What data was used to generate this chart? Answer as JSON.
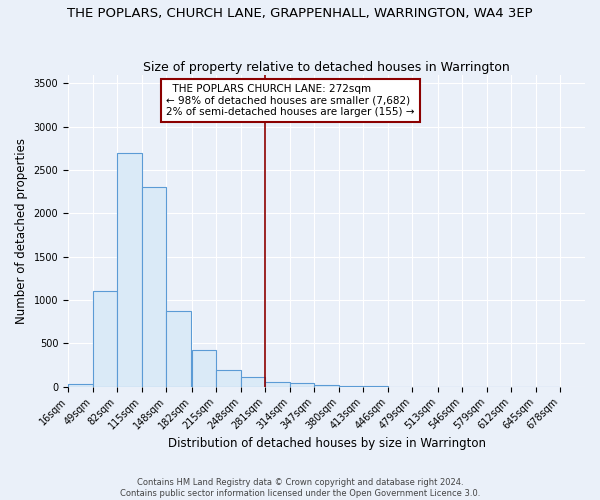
{
  "title": "THE POPLARS, CHURCH LANE, GRAPPENHALL, WARRINGTON, WA4 3EP",
  "subtitle": "Size of property relative to detached houses in Warrington",
  "xlabel": "Distribution of detached houses by size in Warrington",
  "ylabel": "Number of detached properties",
  "footer_line1": "Contains HM Land Registry data © Crown copyright and database right 2024.",
  "footer_line2": "Contains public sector information licensed under the Open Government Licence 3.0.",
  "bin_edges": [
    16,
    49,
    82,
    115,
    148,
    182,
    215,
    248,
    281,
    314,
    347,
    380,
    413,
    446,
    479,
    513,
    546,
    579,
    612,
    645,
    678
  ],
  "bar_heights": [
    30,
    1100,
    2700,
    2300,
    880,
    420,
    190,
    110,
    60,
    40,
    20,
    5,
    5,
    2,
    0,
    0,
    0,
    0,
    0,
    0
  ],
  "property_line_x": 281,
  "annotation_text": "  THE POPLARS CHURCH LANE: 272sqm\n← 98% of detached houses are smaller (7,682)\n2% of semi-detached houses are larger (155) →",
  "bar_color": "#daeaf7",
  "bar_edge_color": "#5b9bd5",
  "vline_color": "#8b0000",
  "annotation_box_color": "#ffffff",
  "annotation_box_edge": "#8b0000",
  "background_color": "#eaf0f9",
  "ylim": [
    0,
    3600
  ],
  "yticks": [
    0,
    500,
    1000,
    1500,
    2000,
    2500,
    3000,
    3500
  ],
  "title_fontsize": 9.5,
  "subtitle_fontsize": 9,
  "xlabel_fontsize": 8.5,
  "ylabel_fontsize": 8.5,
  "tick_fontsize": 7,
  "annotation_fontsize": 7.5,
  "grid_color": "#ffffff"
}
